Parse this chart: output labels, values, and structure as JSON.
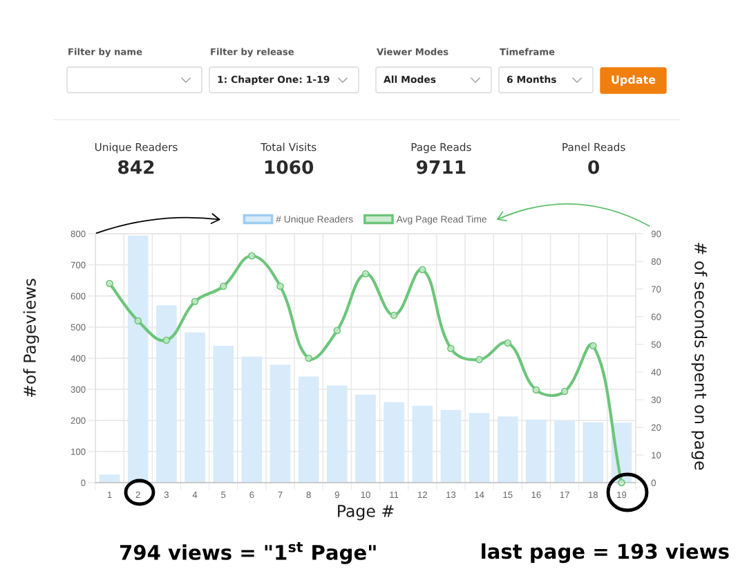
{
  "chart_data": [
    {
      "type": "other",
      "categories": [
        "Filter by name",
        "Filter by release",
        "Viewer Modes",
        "Timeframe"
      ],
      "value_labels": [
        null,
        "1: Chapter One: 1-19",
        "All Modes",
        "6 Months"
      ],
      "annotations": [
        "Update"
      ],
      "color": "#f07f0e"
    },
    {
      "type": "other",
      "categories": [
        "Unique Readers",
        "Total Visits",
        "Page Reads",
        "Panel Reads"
      ],
      "values": [
        842,
        1060,
        9711,
        0
      ],
      "data_labels": true
    },
    {
      "type": "bar",
      "categories": [
        "1",
        "2",
        "3",
        "4",
        "5",
        "6",
        "7",
        "8",
        "9",
        "10",
        "11",
        "12",
        "13",
        "14",
        "15",
        "16",
        "17",
        "18",
        "19"
      ],
      "series": [
        {
          "name": "# Unique Readers",
          "type": "bar",
          "color": "#d7ebfa",
          "values": [
            26,
            794,
            570,
            483,
            440,
            405,
            379,
            341,
            312,
            283,
            259,
            247,
            234,
            224,
            213,
            203,
            199,
            194,
            193
          ]
        },
        {
          "name": "Avg Page Read Time",
          "type": "line",
          "axis": "y2",
          "color": "#6cc57a",
          "values": [
            72,
            58.5,
            51.5,
            65.5,
            71,
            82,
            71,
            45,
            55,
            75.5,
            60.5,
            77,
            48.5,
            44.5,
            50.5,
            33.5,
            33,
            49.5,
            0
          ]
        }
      ],
      "xlabel": "Page #",
      "ylabel": "#of Pageviews",
      "y2label": "# of seconds spent on page",
      "ylim": [
        0,
        800
      ],
      "yticks": [
        0,
        100,
        200,
        300,
        400,
        500,
        600,
        700,
        800
      ],
      "y2lim": [
        0,
        90
      ],
      "y2ticks": [
        0,
        10,
        20,
        30,
        40,
        50,
        60,
        70,
        80,
        90
      ],
      "grid": true,
      "legend": "top",
      "marker": "circle",
      "line_style": "solid",
      "annotations": [
        "794 views = \"1$^{st}$ Page\"",
        "last page = 193 views"
      ]
    }
  ]
}
